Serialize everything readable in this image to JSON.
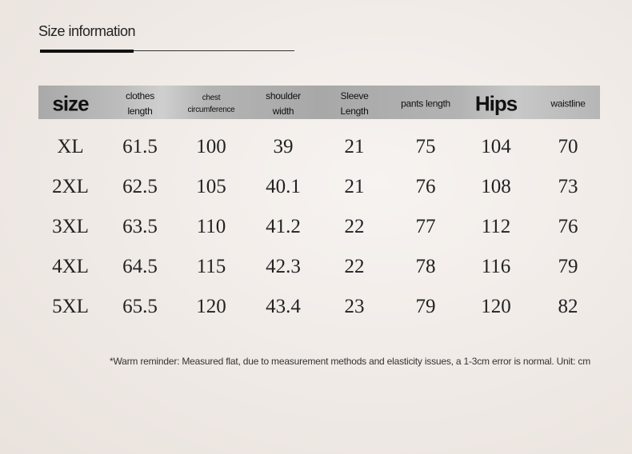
{
  "title": "Size information",
  "table": {
    "header": [
      "size",
      "clothes length",
      "chest circumference",
      "shoulder width",
      "Sleeve Length",
      "pants length",
      "Hips",
      "waistline"
    ],
    "rows": [
      [
        "XL",
        61.5,
        100,
        39,
        21,
        75,
        104,
        70
      ],
      [
        "2XL",
        62.5,
        105,
        40.1,
        21,
        76,
        108,
        73
      ],
      [
        "3XL",
        63.5,
        110,
        41.2,
        22,
        77,
        112,
        76
      ],
      [
        "4XL",
        64.5,
        115,
        42.3,
        22,
        78,
        116,
        79
      ],
      [
        "5XL",
        65.5,
        120,
        43.4,
        23,
        79,
        120,
        82
      ]
    ]
  },
  "note": "*Warm reminder: Measured flat, due to measurement methods and elasticity issues, a 1-3cm error is normal. Unit: cm"
}
